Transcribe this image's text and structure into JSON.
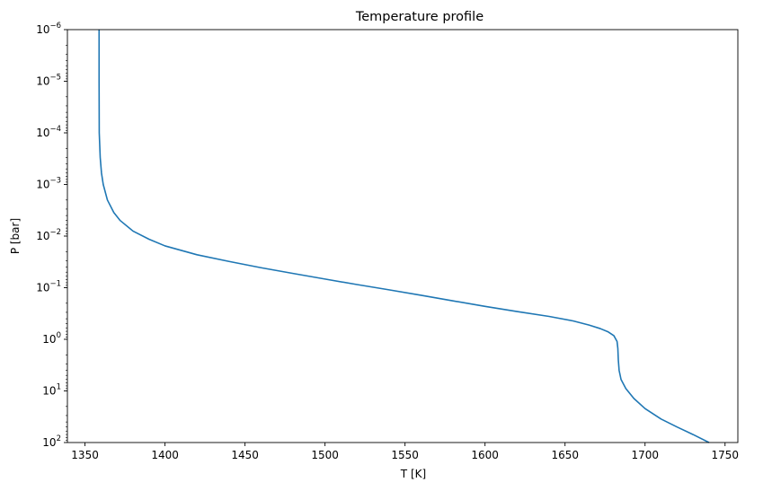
{
  "chart_data": {
    "type": "line",
    "title": "Temperature profile",
    "xlabel": "T [K]",
    "ylabel": "P [bar]",
    "xlim": [
      1339,
      1758
    ],
    "ylim": [
      100,
      1e-06
    ],
    "y_scale": "log",
    "y_inverted": true,
    "grid": false,
    "x_ticks": [
      1350,
      1400,
      1450,
      1500,
      1550,
      1600,
      1650,
      1700,
      1750
    ],
    "y_ticks": [
      {
        "value": 1e-06,
        "base": "10",
        "exp": "−6"
      },
      {
        "value": 1e-05,
        "base": "10",
        "exp": "−5"
      },
      {
        "value": 0.0001,
        "base": "10",
        "exp": "−4"
      },
      {
        "value": 0.001,
        "base": "10",
        "exp": "−3"
      },
      {
        "value": 0.01,
        "base": "10",
        "exp": "−2"
      },
      {
        "value": 0.1,
        "base": "10",
        "exp": "−1"
      },
      {
        "value": 1,
        "base": "10",
        "exp": "0"
      },
      {
        "value": 10,
        "base": "10",
        "exp": "1"
      },
      {
        "value": 100,
        "base": "10",
        "exp": "2"
      }
    ],
    "series": [
      {
        "color": "#1f77b4",
        "points": [
          [
            1358.8,
            1e-06
          ],
          [
            1358.8,
            1e-05
          ],
          [
            1358.9,
            0.0001
          ],
          [
            1359.5,
            0.0003
          ],
          [
            1360.3,
            0.0006
          ],
          [
            1361.4,
            0.001
          ],
          [
            1364,
            0.002
          ],
          [
            1368,
            0.0035
          ],
          [
            1372,
            0.005
          ],
          [
            1380,
            0.008
          ],
          [
            1390,
            0.0115
          ],
          [
            1400,
            0.0155
          ],
          [
            1420,
            0.023
          ],
          [
            1440,
            0.031
          ],
          [
            1460,
            0.041
          ],
          [
            1480,
            0.053
          ],
          [
            1500,
            0.068
          ],
          [
            1520,
            0.087
          ],
          [
            1540,
            0.11
          ],
          [
            1560,
            0.14
          ],
          [
            1580,
            0.18
          ],
          [
            1600,
            0.23
          ],
          [
            1620,
            0.29
          ],
          [
            1640,
            0.36
          ],
          [
            1655,
            0.44
          ],
          [
            1665,
            0.53
          ],
          [
            1672,
            0.62
          ],
          [
            1677,
            0.72
          ],
          [
            1680.5,
            0.85
          ],
          [
            1682.5,
            1.1
          ],
          [
            1683,
            1.5
          ],
          [
            1683.3,
            2.5
          ],
          [
            1683.8,
            4
          ],
          [
            1685,
            6
          ],
          [
            1688,
            9
          ],
          [
            1693,
            14
          ],
          [
            1700,
            22
          ],
          [
            1710,
            35
          ],
          [
            1720,
            50
          ],
          [
            1730,
            70
          ],
          [
            1740,
            100
          ]
        ]
      }
    ]
  }
}
